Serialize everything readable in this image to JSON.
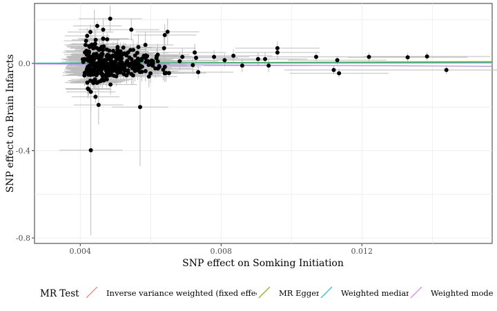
{
  "chart_data": {
    "type": "scatter",
    "xlabel": "SNP effect on Somking Initiation",
    "ylabel": "SNP effect on Brain Infarcts",
    "xlim": [
      0.0027,
      0.0157
    ],
    "ylim": [
      -0.825,
      0.275
    ],
    "x_ticks": [
      0.004,
      0.008,
      0.012
    ],
    "x_tick_labels": [
      "0.004",
      "0.008",
      "0.012"
    ],
    "y_ticks": [
      0.0,
      -0.4,
      -0.8
    ],
    "y_tick_labels": [
      "0.0",
      "-0.4",
      "-0.8"
    ],
    "grid": true,
    "legend_position": "bottom",
    "legend_title": "MR Test",
    "series": [
      {
        "name": "Inverse variance weighted (fixed effects)",
        "color": "#F8766D",
        "intercept": 0,
        "slope": 0.3
      },
      {
        "name": "MR Egger",
        "color": "#7CAE00",
        "intercept": -0.0002,
        "slope": 0.55
      },
      {
        "name": "Weighted median",
        "color": "#00BFC4",
        "intercept": 0,
        "slope": 0.2
      },
      {
        "name": "Weighted mode",
        "color": "#C77CFF",
        "intercept": 0,
        "slope": -0.85
      }
    ],
    "points": [
      {
        "x": 0.00485,
        "y": 0.205,
        "xerr": 0.0009,
        "yerr": 0.06
      },
      {
        "x": 0.0044,
        "y": 0.077,
        "xerr": 0.0007,
        "yerr": 0.17
      },
      {
        "x": 0.00415,
        "y": 0.085,
        "xerr": 0.0006,
        "yerr": 0.04
      },
      {
        "x": 0.00465,
        "y": 0.155,
        "xerr": 0.0007,
        "yerr": 0.05
      },
      {
        "x": 0.00545,
        "y": 0.155,
        "xerr": 0.0008,
        "yerr": 0.05
      },
      {
        "x": 0.00565,
        "y": 0.075,
        "xerr": 0.0008,
        "yerr": 0.06
      },
      {
        "x": 0.00585,
        "y": 0.085,
        "xerr": 0.0008,
        "yerr": 0.06
      },
      {
        "x": 0.0062,
        "y": 0.04,
        "xerr": 0.0009,
        "yerr": 0.05
      },
      {
        "x": 0.00638,
        "y": 0.07,
        "xerr": 0.0009,
        "yerr": 0.05
      },
      {
        "x": 0.00648,
        "y": 0.145,
        "xerr": 0.0009,
        "yerr": 0.06
      },
      {
        "x": 0.0064,
        "y": 0.13,
        "xerr": 0.0009,
        "yerr": 0.05
      },
      {
        "x": 0.00535,
        "y": -0.005,
        "xerr": 0.0008,
        "yerr": 0.03
      },
      {
        "x": 0.0048,
        "y": -0.02,
        "xerr": 0.0008,
        "yerr": 0.04
      },
      {
        "x": 0.005,
        "y": 0.01,
        "xerr": 0.0008,
        "yerr": 0.03
      },
      {
        "x": 0.0046,
        "y": -0.03,
        "xerr": 0.0007,
        "yerr": 0.04
      },
      {
        "x": 0.0043,
        "y": -0.13,
        "xerr": 0.0007,
        "yerr": 0.09
      },
      {
        "x": 0.0043,
        "y": -0.398,
        "xerr": 0.0009,
        "yerr": 0.39
      },
      {
        "x": 0.00452,
        "y": -0.19,
        "xerr": 0.0007,
        "yerr": 0.09
      },
      {
        "x": 0.0057,
        "y": -0.2,
        "xerr": 0.0008,
        "yerr": 0.27
      },
      {
        "x": 0.0055,
        "y": -0.055,
        "xerr": 0.0008,
        "yerr": 0.04
      },
      {
        "x": 0.00595,
        "y": -0.06,
        "xerr": 0.0008,
        "yerr": 0.05
      },
      {
        "x": 0.0064,
        "y": -0.045,
        "xerr": 0.0009,
        "yerr": 0.04
      },
      {
        "x": 0.0069,
        "y": 0.03,
        "xerr": 0.0009,
        "yerr": 0.04
      },
      {
        "x": 0.00725,
        "y": 0.05,
        "xerr": 0.0009,
        "yerr": 0.04
      },
      {
        "x": 0.00735,
        "y": -0.04,
        "xerr": 0.001,
        "yerr": 0.03
      },
      {
        "x": 0.0078,
        "y": 0.03,
        "xerr": 0.001,
        "yerr": 0.03
      },
      {
        "x": 0.0081,
        "y": 0.015,
        "xerr": 0.0011,
        "yerr": 0.03
      },
      {
        "x": 0.00835,
        "y": 0.035,
        "xerr": 0.0011,
        "yerr": 0.03
      },
      {
        "x": 0.0086,
        "y": -0.01,
        "xerr": 0.0011,
        "yerr": 0.03
      },
      {
        "x": 0.00905,
        "y": 0.02,
        "xerr": 0.0012,
        "yerr": 0.03
      },
      {
        "x": 0.00925,
        "y": 0.02,
        "xerr": 0.0012,
        "yerr": 0.03
      },
      {
        "x": 0.0096,
        "y": 0.07,
        "xerr": 0.0012,
        "yerr": 0.03
      },
      {
        "x": 0.0096,
        "y": 0.05,
        "xerr": 0.0012,
        "yerr": 0.03
      },
      {
        "x": 0.00935,
        "y": -0.01,
        "xerr": 0.0012,
        "yerr": 0.03
      },
      {
        "x": 0.0107,
        "y": 0.03,
        "xerr": 0.0014,
        "yerr": 0.02
      },
      {
        "x": 0.0113,
        "y": 0.015,
        "xerr": 0.0014,
        "yerr": 0.02
      },
      {
        "x": 0.0112,
        "y": -0.03,
        "xerr": 0.0014,
        "yerr": 0.02
      },
      {
        "x": 0.01135,
        "y": -0.045,
        "xerr": 0.0014,
        "yerr": 0.02
      },
      {
        "x": 0.0122,
        "y": 0.03,
        "xerr": 0.0016,
        "yerr": 0.02
      },
      {
        "x": 0.0133,
        "y": 0.028,
        "xerr": 0.0017,
        "yerr": 0.02
      },
      {
        "x": 0.01385,
        "y": 0.032,
        "xerr": 0.0018,
        "yerr": 0.02
      },
      {
        "x": 0.0144,
        "y": -0.03,
        "xerr": 0.0018,
        "yerr": 0.02
      }
    ]
  }
}
